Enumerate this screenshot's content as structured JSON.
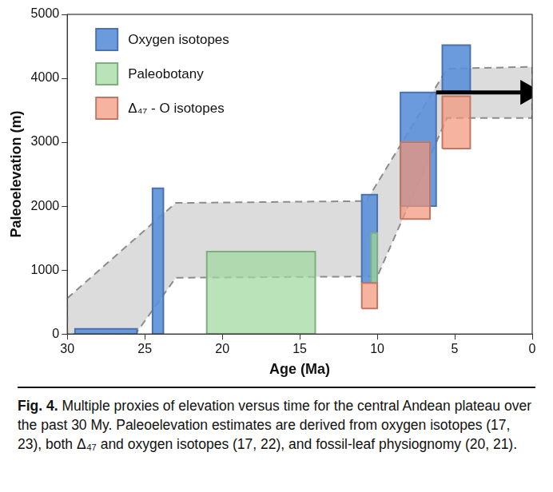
{
  "chart_data": {
    "type": "box_ranges",
    "x_label": "Age (Ma)",
    "y_label": "Paleoelevation (m)",
    "xlim": [
      30,
      0
    ],
    "xticks": [
      30,
      25,
      20,
      15,
      10,
      5,
      0
    ],
    "ylim": [
      0,
      5000
    ],
    "yticks": [
      0,
      1000,
      2000,
      3000,
      4000,
      5000
    ],
    "grid": false,
    "legend": "top-left",
    "series": [
      {
        "name": "Oxygen isotopes",
        "color": "#5b8fd9",
        "boxes": [
          {
            "x": [
              29.5,
              25.5
            ],
            "y": [
              0,
              80
            ]
          },
          {
            "x": [
              24.5,
              23.8
            ],
            "y": [
              0,
              2280
            ]
          },
          {
            "x": [
              11.0,
              10.0
            ],
            "y": [
              800,
              2180
            ]
          },
          {
            "x": [
              8.5,
              6.2
            ],
            "y": [
              2000,
              3780
            ]
          },
          {
            "x": [
              5.8,
              4.0
            ],
            "y": [
              3800,
              4520
            ]
          }
        ]
      },
      {
        "name": "Paleobotany",
        "color": "#9fd89f",
        "boxes": [
          {
            "x": [
              21.0,
              14.0
            ],
            "y": [
              0,
              1290
            ]
          },
          {
            "x": [
              10.4,
              10.0
            ],
            "y": [
              800,
              1580
            ]
          }
        ]
      },
      {
        "name": "Δ₄₇ - O isotopes",
        "color": "#f2957a",
        "boxes": [
          {
            "x": [
              11.0,
              10.0
            ],
            "y": [
              400,
              800
            ]
          },
          {
            "x": [
              8.5,
              6.6
            ],
            "y": [
              1800,
              3000
            ]
          },
          {
            "x": [
              5.8,
              4.0
            ],
            "y": [
              2900,
              3720
            ]
          }
        ]
      }
    ],
    "envelope": {
      "color": "#8c8c8c",
      "line_style": "dashed",
      "upper": [
        [
          30,
          560
        ],
        [
          23,
          2050
        ],
        [
          10.7,
          2080
        ],
        [
          5.5,
          4150
        ],
        [
          0,
          4180
        ]
      ],
      "lower": [
        [
          30,
          0
        ],
        [
          25.6,
          0
        ],
        [
          23,
          880
        ],
        [
          10,
          900
        ],
        [
          5.5,
          3380
        ],
        [
          0,
          3380
        ]
      ]
    },
    "arrow": {
      "color": "#000000",
      "x": [
        6.2,
        0.3
      ],
      "y": [
        3780,
        3780
      ]
    },
    "caption": {
      "label": "Fig. 4.",
      "text": "Multiple proxies of elevation versus time for the central Andean plateau over the past 30 My. Paleoelevation estimates are derived from oxygen isotopes (17, 23), both Δ₄₇ and oxygen isotopes (17, 22), and fossil-leaf physiognomy (20, 21)."
    }
  }
}
